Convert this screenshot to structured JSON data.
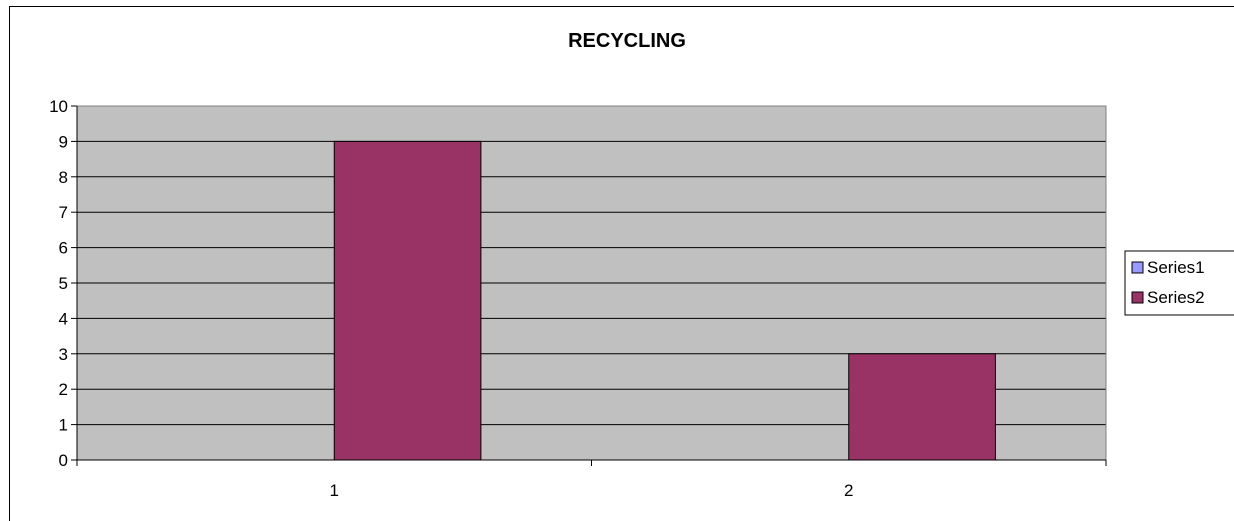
{
  "chart_data": {
    "type": "bar",
    "title": "RECYCLING",
    "xlabel": "",
    "ylabel": "",
    "categories": [
      "1",
      "2"
    ],
    "series": [
      {
        "name": "Series1",
        "values": [
          0,
          0
        ],
        "color": "#9999ff"
      },
      {
        "name": "Series2",
        "values": [
          9,
          3
        ],
        "color": "#993366"
      }
    ],
    "ylim": [
      0,
      10
    ],
    "yticks": [
      "0",
      "1",
      "2",
      "3",
      "4",
      "5",
      "6",
      "7",
      "8",
      "9",
      "10"
    ],
    "grid": true,
    "plot_background": "#c0c0c0",
    "legend_position": "right"
  }
}
